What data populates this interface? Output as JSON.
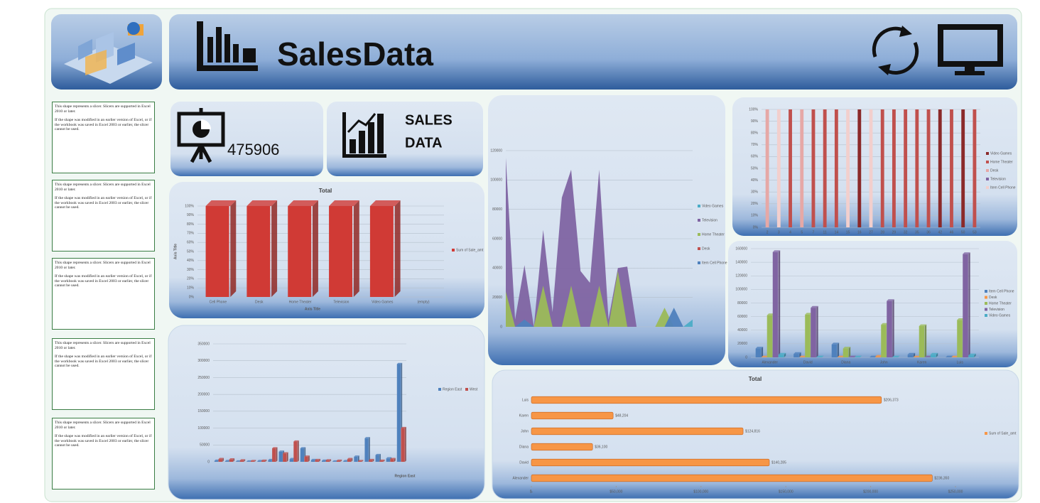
{
  "header": {
    "title": "SalesData"
  },
  "kpi": {
    "value": 475906,
    "title": [
      "SALES",
      "DATA"
    ]
  },
  "slicers": [
    {
      "line1": "This shape represents a slicer. Slicers are supported in Excel 2010 or later.",
      "line2": "If the shape was modified in an earlier version of Excel, or if the workbook was saved in Excel 2003 or earlier, the slicer cannot be used."
    },
    {
      "line1": "This shape represents a slicer. Slicers are supported in Excel 2010 or later.",
      "line2": "If the shape was modified in an earlier version of Excel, or if the workbook was saved in Excel 2003 or earlier, the slicer cannot be used."
    },
    {
      "line1": "This shape represents a slicer. Slicers are supported in Excel 2010 or later.",
      "line2": "If the shape was modified in an earlier version of Excel, or if the workbook was saved in Excel 2003 or earlier, the slicer cannot be used."
    },
    {
      "line1": "This shape represents a slicer. Slicers are supported in Excel 2010 or later.",
      "line2": "If the shape was modified in an earlier version of Excel, or if the workbook was saved in Excel 2003 or earlier, the slicer cannot be used."
    },
    {
      "line1": "This shape represents a slicer. Slicers are supported in Excel 2010 or later.",
      "line2": "If the shape was modified in an earlier version of Excel, or if the workbook was saved in Excel 2003 or earlier, the slicer cannot be used."
    }
  ],
  "chart_data": [
    {
      "type": "bar",
      "title": "Total",
      "x_label": "Axis Title",
      "y_label": "Axis Title",
      "categories": [
        "Cell Phone",
        "Desk",
        "Home Theater",
        "Television",
        "Video Games",
        "(empty)"
      ],
      "series": [
        {
          "name": "Sum of Sale_amt",
          "color": "#d03a35",
          "values": [
            100,
            100,
            100,
            100,
            100,
            null
          ]
        }
      ],
      "ylim": [
        0,
        100
      ],
      "yticks": [
        {
          "value": 0,
          "label": "0%"
        },
        {
          "value": 10,
          "label": "10%"
        },
        {
          "value": 20,
          "label": "20%"
        },
        {
          "value": 30,
          "label": "30%"
        },
        {
          "value": 40,
          "label": "40%"
        },
        {
          "value": 50,
          "label": "50%"
        },
        {
          "value": 60,
          "label": "60%"
        },
        {
          "value": 70,
          "label": "70%"
        },
        {
          "value": 80,
          "label": "80%"
        },
        {
          "value": 90,
          "label": "90%"
        },
        {
          "value": 100,
          "label": "100%"
        }
      ],
      "grid": true,
      "legend": "right"
    },
    {
      "type": "bar",
      "x_label": "Region East",
      "categories": [
        null,
        null,
        null,
        null,
        null,
        null,
        null,
        null,
        null,
        null,
        null,
        null,
        null,
        null,
        null,
        null,
        null,
        null
      ],
      "series": [
        {
          "name": "Region East",
          "color": "#4f81bd",
          "values": [
            3000,
            2000,
            1000,
            1000,
            2000,
            5000,
            30000,
            8000,
            40000,
            5000,
            3000,
            1000,
            2000,
            15000,
            70000,
            20000,
            10000,
            290000
          ]
        },
        {
          "name": "West",
          "color": "#c0504d",
          "values": [
            8000,
            7000,
            4000,
            2000,
            3000,
            40000,
            25000,
            60000,
            15000,
            5000,
            4000,
            3000,
            8000,
            2000,
            5000,
            3000,
            8000,
            100000
          ]
        }
      ],
      "ylim": [
        0,
        350000
      ],
      "yticks": [
        0,
        50000,
        100000,
        150000,
        200000,
        250000,
        300000,
        350000
      ],
      "grid": true,
      "legend": "right"
    },
    {
      "type": "area",
      "categories": [
        null,
        null,
        null,
        null,
        null,
        null,
        null,
        null,
        null,
        null,
        null,
        null,
        null,
        null,
        null,
        null,
        null,
        null,
        null,
        null,
        null
      ],
      "series": [
        {
          "name": "Video Games",
          "color": "#4bacc6",
          "values": [
            0,
            0,
            0,
            0,
            0,
            0,
            0,
            0,
            0,
            0,
            0,
            0,
            0,
            0,
            0,
            0,
            0,
            0,
            0,
            0,
            5000
          ]
        },
        {
          "name": "Television",
          "color": "#8064a2",
          "values": [
            115000,
            5000,
            42000,
            0,
            66000,
            10000,
            88000,
            107000,
            38000,
            30000,
            107000,
            5000,
            40000,
            41000,
            0,
            0,
            0,
            0,
            0,
            0,
            0
          ]
        },
        {
          "name": "Home Theater",
          "color": "#9bbb59",
          "values": [
            24000,
            0,
            0,
            0,
            28000,
            0,
            0,
            28000,
            0,
            0,
            28000,
            0,
            38000,
            0,
            0,
            0,
            0,
            13000,
            0,
            0,
            0
          ]
        },
        {
          "name": "Desk",
          "color": "#c0504d",
          "values": [
            0,
            0,
            0,
            0,
            0,
            0,
            0,
            0,
            0,
            0,
            0,
            0,
            0,
            0,
            0,
            0,
            0,
            0,
            0,
            0,
            0
          ]
        },
        {
          "name": "Item Cell Phone",
          "color": "#4f81bd",
          "values": [
            0,
            0,
            5000,
            0,
            0,
            0,
            0,
            0,
            0,
            0,
            0,
            0,
            0,
            0,
            0,
            0,
            0,
            0,
            13000,
            0,
            0
          ]
        }
      ],
      "ylim": [
        0,
        120000
      ],
      "yticks": [
        0,
        20000,
        40000,
        60000,
        80000,
        100000,
        120000
      ],
      "grid": true,
      "legend": "right"
    },
    {
      "type": "stacked",
      "categories": [
        "2",
        "3",
        "4",
        "5",
        "7",
        "11",
        "14",
        "15",
        "16",
        "27",
        "28",
        "29",
        "32",
        "35",
        "36",
        "42",
        "46",
        "50",
        "53"
      ],
      "series": [
        {
          "name": "Video Games",
          "color": "#8b2a2a",
          "values": [
            0,
            0,
            0,
            0,
            0,
            0,
            0,
            0,
            100,
            0,
            0,
            0,
            0,
            0,
            0,
            100,
            0,
            100,
            0
          ]
        },
        {
          "name": "Home Theater",
          "color": "#c0504d",
          "values": [
            0,
            0,
            100,
            0,
            100,
            100,
            100,
            0,
            0,
            0,
            100,
            100,
            100,
            100,
            100,
            0,
            100,
            0,
            100
          ]
        },
        {
          "name": "Desk",
          "color": "#e6a8a6",
          "values": [
            100,
            0,
            0,
            100,
            0,
            0,
            0,
            0,
            0,
            0,
            0,
            0,
            0,
            0,
            0,
            0,
            0,
            0,
            0
          ]
        },
        {
          "name": "Television",
          "color": "#8064a2",
          "values": [
            0,
            0,
            0,
            0,
            0,
            0,
            0,
            0,
            0,
            0,
            0,
            0,
            0,
            0,
            0,
            0,
            0,
            0,
            0
          ]
        },
        {
          "name": "Item Cell Phone",
          "color": "#f2cfcd",
          "values": [
            0,
            100,
            0,
            0,
            0,
            0,
            0,
            100,
            0,
            100,
            0,
            0,
            0,
            0,
            0,
            0,
            0,
            0,
            0
          ]
        }
      ],
      "ylim": [
        0,
        100
      ],
      "yticks": [
        {
          "value": 0,
          "label": "0%"
        },
        {
          "value": 10,
          "label": "10%"
        },
        {
          "value": 20,
          "label": "20%"
        },
        {
          "value": 30,
          "label": "30%"
        },
        {
          "value": 40,
          "label": "40%"
        },
        {
          "value": 50,
          "label": "50%"
        },
        {
          "value": 60,
          "label": "60%"
        },
        {
          "value": 70,
          "label": "70%"
        },
        {
          "value": 80,
          "label": "80%"
        },
        {
          "value": 90,
          "label": "90%"
        },
        {
          "value": 100,
          "label": "100%"
        }
      ],
      "grid": true,
      "legend": "right"
    },
    {
      "type": "bar",
      "categories": [
        "Alexander",
        "David",
        "Diana",
        "John",
        "Karen",
        "Luis"
      ],
      "series": [
        {
          "name": "Item Cell Phone",
          "color": "#4f81bd",
          "values": [
            13000,
            5000,
            19000,
            0,
            4000,
            0
          ]
        },
        {
          "name": "Desk",
          "color": "#f79646",
          "values": [
            0,
            0,
            0,
            1000,
            0,
            0
          ]
        },
        {
          "name": "Home Theater",
          "color": "#9bbb59",
          "values": [
            62000,
            63000,
            13000,
            48000,
            46000,
            55000
          ]
        },
        {
          "name": "Television",
          "color": "#8064a2",
          "values": [
            155000,
            73000,
            0,
            83000,
            0,
            152000
          ]
        },
        {
          "name": "Video Games",
          "color": "#4bacc6",
          "values": [
            4000,
            0,
            0,
            0,
            4000,
            3000
          ]
        }
      ],
      "ylim": [
        0,
        160000
      ],
      "yticks": [
        0,
        20000,
        40000,
        60000,
        80000,
        100000,
        120000,
        140000,
        160000
      ],
      "grid": true,
      "legend": "right"
    },
    {
      "type": "barh",
      "title": "Total",
      "categories": [
        "Luis",
        "Karen",
        "John",
        "Diana",
        "David",
        "Alexander"
      ],
      "series": [
        {
          "name": "Sum of Sale_amt",
          "color": "#f79646",
          "values": [
            206373,
            48204,
            124816,
            36100,
            140285,
            236350
          ],
          "value_labels": [
            "$206,373",
            "$48,204",
            "$124,816",
            "$36,100",
            "$140,285",
            "$236,350"
          ]
        }
      ],
      "xlim": [
        0,
        250000
      ],
      "xticks": [
        {
          "value": 0,
          "label": "$-"
        },
        {
          "value": 50000,
          "label": "$50,000"
        },
        {
          "value": 100000,
          "label": "$100,000"
        },
        {
          "value": 150000,
          "label": "$150,000"
        },
        {
          "value": 200000,
          "label": "$200,000"
        },
        {
          "value": 250000,
          "label": "$250,000"
        }
      ],
      "grid": false,
      "legend": "right"
    }
  ]
}
